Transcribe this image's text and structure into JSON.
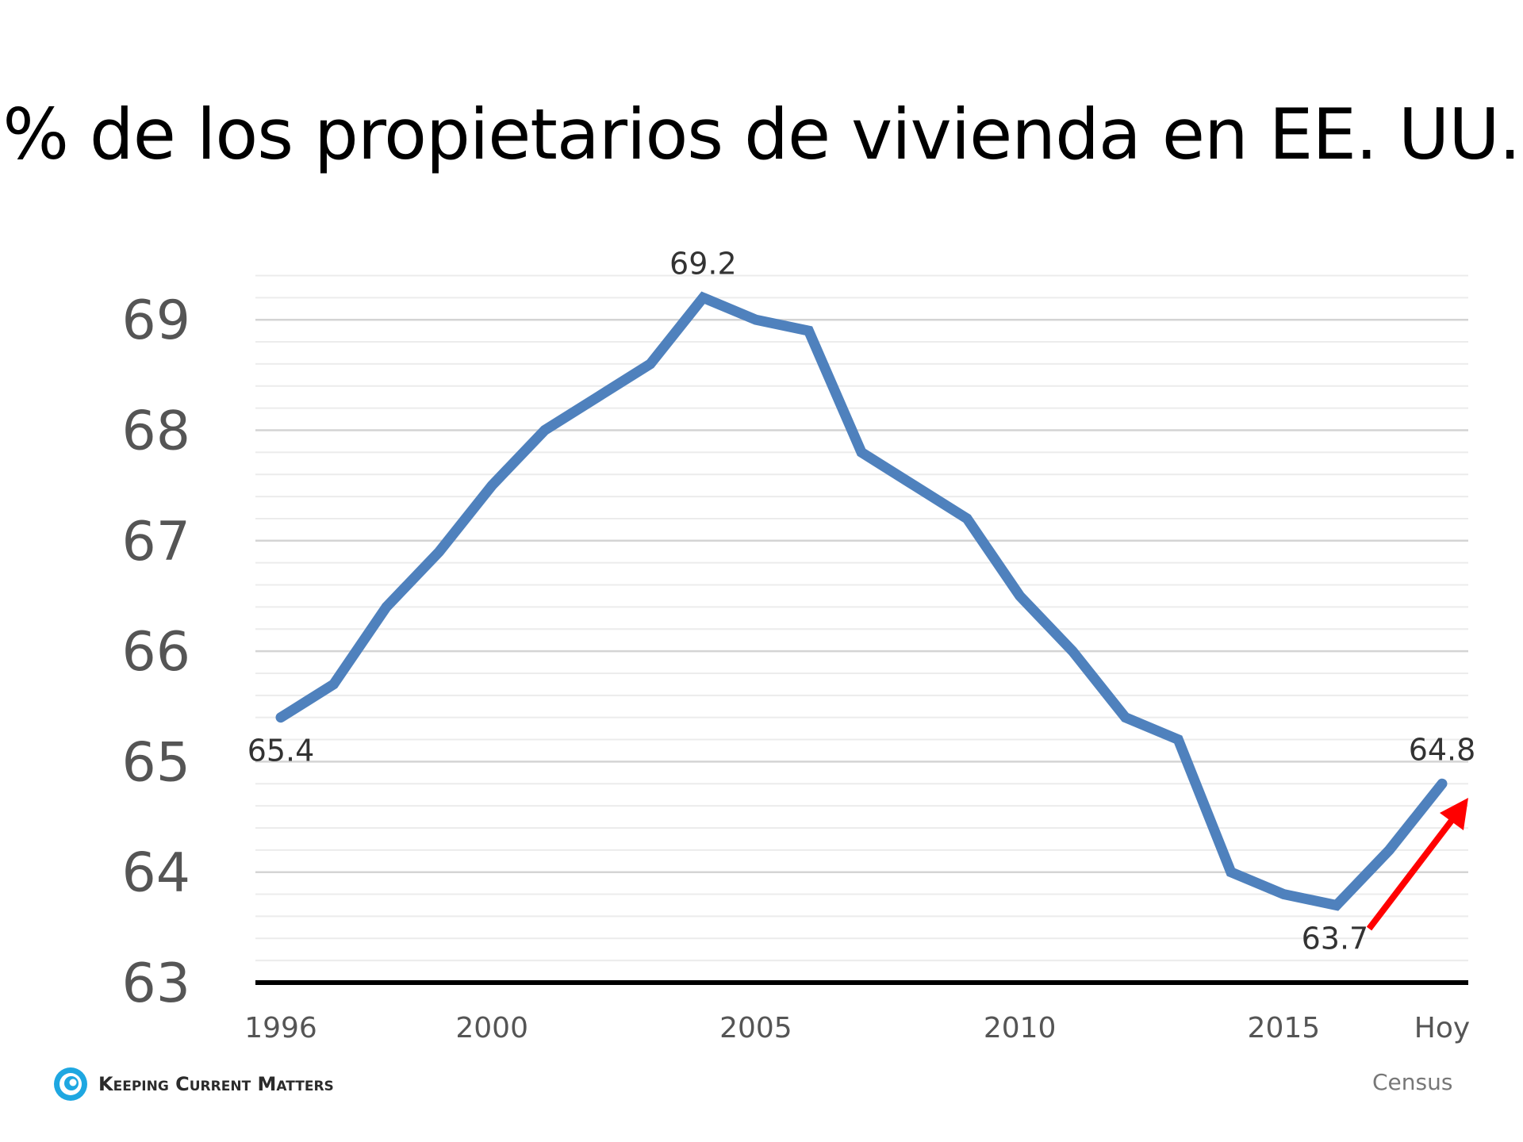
{
  "chart_data": {
    "type": "line",
    "title": "% de los propietarios de vivienda en EE. UU.",
    "x": [
      1996,
      1997,
      1998,
      1999,
      2000,
      2001,
      2002,
      2003,
      2004,
      2005,
      2006,
      2007,
      2008,
      2009,
      2010,
      2011,
      2012,
      2013,
      2014,
      2015,
      2016,
      2017,
      2018
    ],
    "series": [
      {
        "values": [
          65.4,
          65.7,
          66.4,
          66.9,
          67.5,
          68.0,
          68.3,
          68.6,
          69.2,
          69.0,
          68.9,
          67.8,
          67.5,
          67.2,
          66.5,
          66.0,
          65.4,
          65.2,
          64.0,
          63.8,
          63.7,
          64.2,
          64.8
        ],
        "color": "#4f81bd"
      }
    ],
    "x_ticks": [
      {
        "value": 1996,
        "label": "1996"
      },
      {
        "value": 2000,
        "label": "2000"
      },
      {
        "value": 2005,
        "label": "2005"
      },
      {
        "value": 2010,
        "label": "2010"
      },
      {
        "value": 2015,
        "label": "2015"
      },
      {
        "value": 2018,
        "label": "Hoy"
      }
    ],
    "y_ticks": [
      "63",
      "64",
      "65",
      "66",
      "67",
      "68",
      "69"
    ],
    "ylim": [
      63,
      69.4
    ],
    "minor_grid_step": 0.2,
    "grid": true,
    "data_labels": [
      {
        "x": 1996,
        "y": 65.4,
        "text": "65.4",
        "position": "below"
      },
      {
        "x": 2004,
        "y": 69.2,
        "text": "69.2",
        "position": "above"
      },
      {
        "x": 2016,
        "y": 63.7,
        "text": "63.7",
        "position": "below"
      },
      {
        "x": 2018,
        "y": 64.8,
        "text": "64.8",
        "position": "above"
      }
    ],
    "annotation": {
      "type": "arrow",
      "direction": "up-right",
      "color": "#ff0000",
      "from_x": 2016,
      "to_x": 2018
    }
  },
  "footer": {
    "logo_text": "Keeping Current Matters",
    "source": "Census"
  }
}
